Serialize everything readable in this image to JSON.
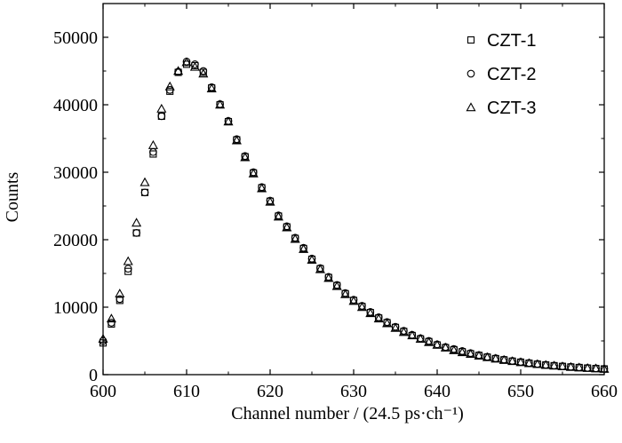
{
  "chart_data": {
    "type": "scatter",
    "title": "",
    "xlabel": "Channel number / (24.5 ps·ch⁻¹)",
    "ylabel": "Counts",
    "xlim": [
      600,
      660
    ],
    "ylim": [
      0,
      55000
    ],
    "x_ticks": [
      "600",
      "610",
      "620",
      "630",
      "640",
      "650",
      "660"
    ],
    "y_ticks": [
      "0",
      "10000",
      "20000",
      "30000",
      "40000",
      "50000"
    ],
    "grid": false,
    "legend_position": "top-right",
    "x": [
      600,
      601,
      602,
      603,
      604,
      605,
      606,
      607,
      608,
      609,
      610,
      611,
      612,
      613,
      614,
      615,
      616,
      617,
      618,
      619,
      620,
      621,
      622,
      623,
      624,
      625,
      626,
      627,
      628,
      629,
      630,
      631,
      632,
      633,
      634,
      635,
      636,
      637,
      638,
      639,
      640,
      641,
      642,
      643,
      644,
      645,
      646,
      647,
      648,
      649,
      650,
      651,
      652,
      653,
      654,
      655,
      656,
      657,
      658,
      659,
      660
    ],
    "series": [
      {
        "name": "CZT-1",
        "marker": "square",
        "values": [
          4700,
          7500,
          11000,
          15300,
          21000,
          27000,
          32700,
          38300,
          42000,
          44800,
          46000,
          45800,
          44800,
          42500,
          40000,
          37500,
          34800,
          32300,
          29900,
          27700,
          25700,
          23500,
          21900,
          20200,
          18700,
          17100,
          15700,
          14400,
          13200,
          12000,
          11000,
          10100,
          9200,
          8400,
          7700,
          7000,
          6400,
          5800,
          5300,
          4900,
          4400,
          4000,
          3700,
          3400,
          3100,
          2850,
          2600,
          2380,
          2200,
          2000,
          1850,
          1700,
          1560,
          1440,
          1330,
          1230,
          1140,
          1060,
          980,
          910,
          850
        ]
      },
      {
        "name": "CZT-2",
        "marker": "circle",
        "values": [
          5000,
          7700,
          11200,
          15700,
          21000,
          27000,
          33000,
          38300,
          42200,
          44900,
          46400,
          46000,
          45000,
          42600,
          40100,
          37600,
          34900,
          32400,
          30000,
          27800,
          25800,
          23600,
          22000,
          20300,
          18800,
          17200,
          15800,
          14500,
          13300,
          12100,
          11100,
          10200,
          9300,
          8500,
          7800,
          7100,
          6500,
          5900,
          5400,
          5000,
          4500,
          4100,
          3800,
          3500,
          3200,
          2900,
          2650,
          2430,
          2240,
          2050,
          1890,
          1740,
          1600,
          1470,
          1360,
          1260,
          1170,
          1090,
          1010,
          940,
          880
        ]
      },
      {
        "name": "CZT-3",
        "marker": "triangle",
        "values": [
          5300,
          8300,
          12000,
          16800,
          22500,
          28500,
          34000,
          39400,
          42700,
          45000,
          46300,
          45600,
          44600,
          42400,
          40000,
          37500,
          34700,
          32200,
          29800,
          27600,
          25600,
          23400,
          21800,
          20100,
          18600,
          17000,
          15600,
          14300,
          13100,
          11900,
          10900,
          10000,
          9100,
          8300,
          7600,
          6900,
          6300,
          5800,
          5300,
          4800,
          4400,
          4000,
          3600,
          3300,
          3050,
          2800,
          2560,
          2350,
          2160,
          1980,
          1820,
          1680,
          1540,
          1420,
          1310,
          1210,
          1120,
          1040,
          960,
          900,
          840
        ]
      }
    ]
  }
}
